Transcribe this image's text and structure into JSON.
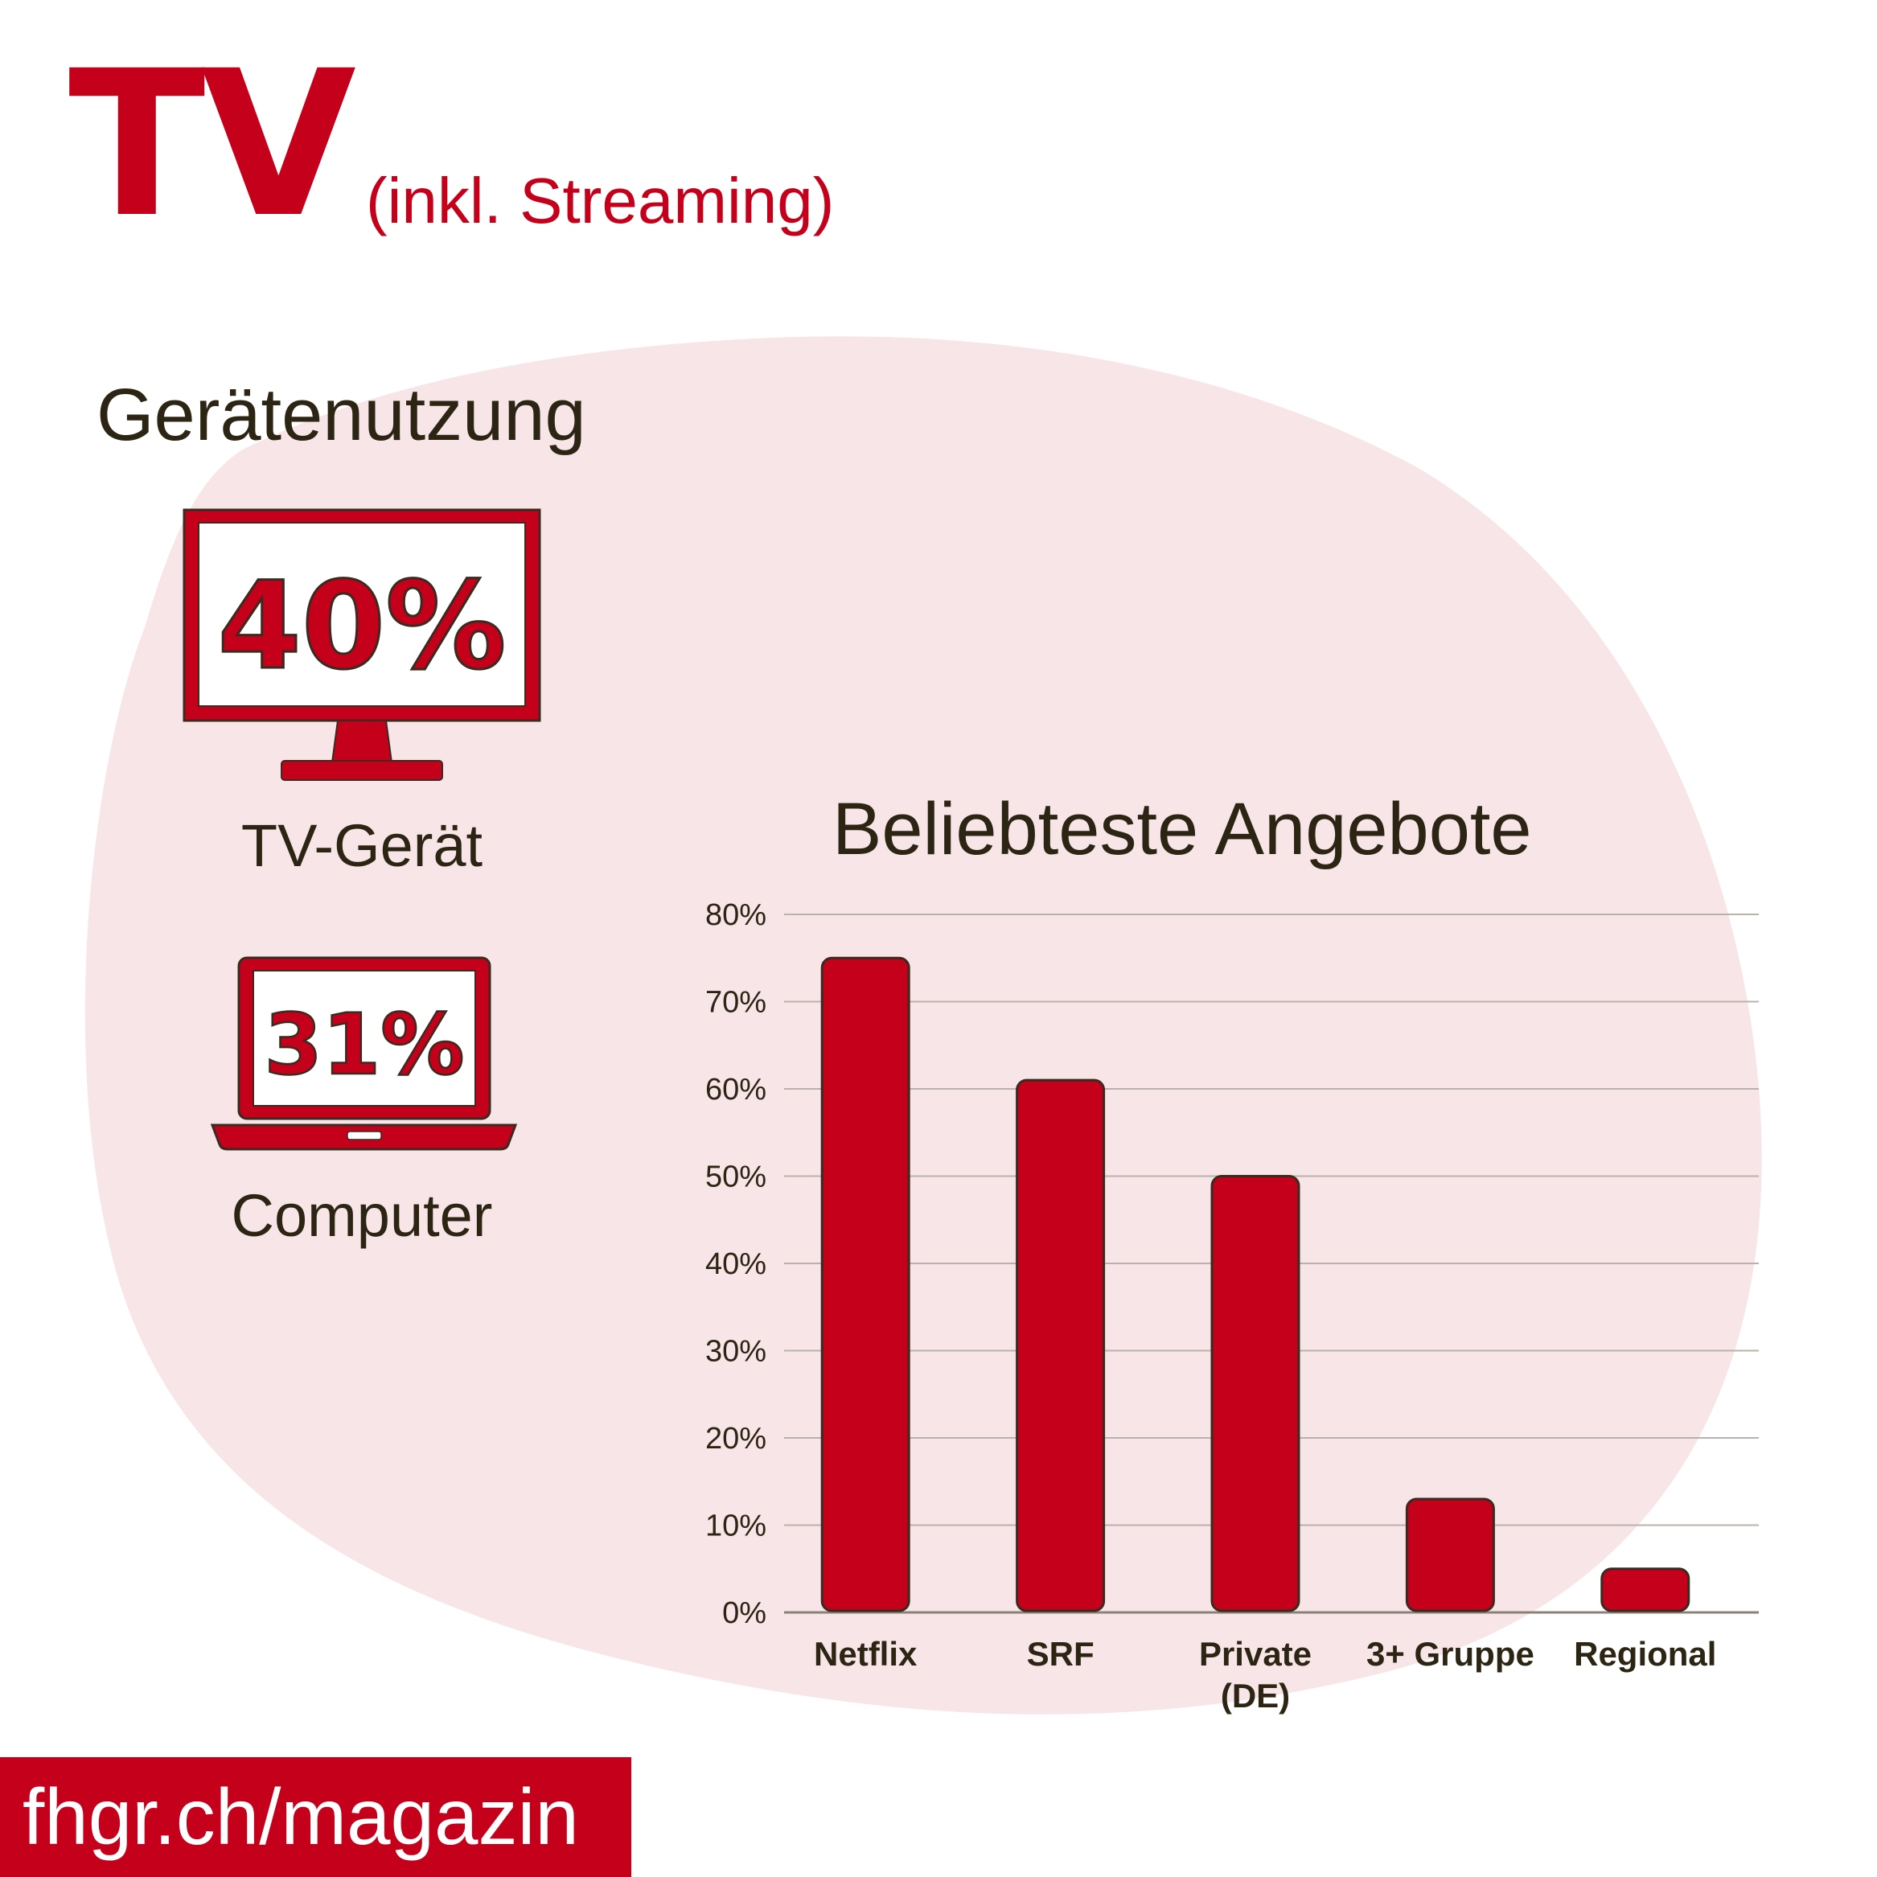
{
  "header": {
    "title": "TV",
    "subtitle": "(inkl. Streaming)"
  },
  "devices": {
    "title": "Gerätenutzung",
    "items": [
      {
        "percent": "40%",
        "label": "TV-Gerät",
        "icon": "tv-monitor-icon"
      },
      {
        "percent": "31%",
        "label": "Computer",
        "icon": "laptop-icon"
      }
    ]
  },
  "colors": {
    "accent": "#c4001a",
    "background_blob": "#f7e5e8",
    "text": "#2d2514"
  },
  "chart_data": {
    "type": "bar",
    "title": "Beliebteste Angebote",
    "categories": [
      [
        "Netflix"
      ],
      [
        "SRF"
      ],
      [
        "Private",
        "(DE)"
      ],
      [
        "3+ Gruppe"
      ],
      [
        "Regional"
      ]
    ],
    "values": [
      75,
      61,
      50,
      13,
      5
    ],
    "ylim": [
      0,
      80
    ],
    "yticks": [
      "0%",
      "10%",
      "20%",
      "30%",
      "40%",
      "50%",
      "60%",
      "70%",
      "80%"
    ],
    "grid": true
  },
  "footer": {
    "text": "fhgr.ch/magazin"
  }
}
